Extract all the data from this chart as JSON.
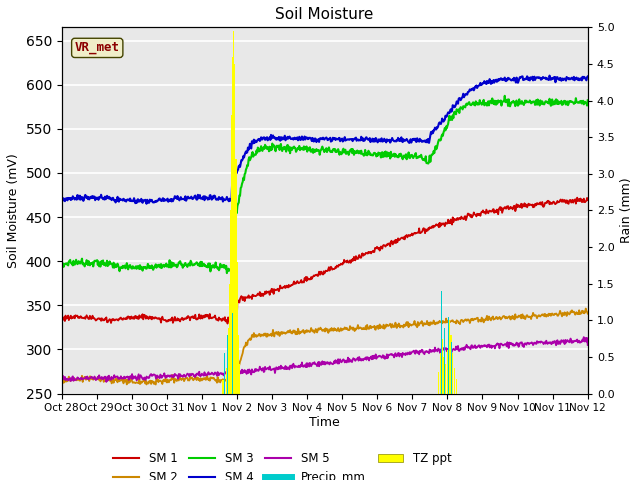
{
  "title": "Soil Moisture",
  "ylabel_left": "Soil Moisture (mV)",
  "ylabel_right": "Rain (mm)",
  "xlabel": "Time",
  "xlim_dates": [
    "Oct 28",
    "Oct 29",
    "Oct 30",
    "Oct 31",
    "Nov 1",
    "Nov 2",
    "Nov 3",
    "Nov 4",
    "Nov 5",
    "Nov 6",
    "Nov 7",
    "Nov 8",
    "Nov 9",
    "Nov 10",
    "Nov 11",
    "Nov 12"
  ],
  "ylim_left": [
    250,
    665
  ],
  "ylim_right": [
    0.0,
    5.0
  ],
  "yticks_left": [
    250,
    300,
    350,
    400,
    450,
    500,
    550,
    600,
    650
  ],
  "yticks_right": [
    0.0,
    0.5,
    1.0,
    1.5,
    2.0,
    2.5,
    3.0,
    3.5,
    4.0,
    4.5,
    5.0
  ],
  "background_color": "#e8e8e8",
  "grid_color": "#ffffff",
  "label_box": "VR_met",
  "label_box_color": "#8B0000",
  "label_box_bg": "#f0eec8",
  "colors": {
    "SM1": "#cc0000",
    "SM2": "#cc8800",
    "SM3": "#00cc00",
    "SM4": "#0000cc",
    "SM5": "#aa00aa",
    "Precip": "#00cccc",
    "TZ_ppt": "#ffff00"
  }
}
